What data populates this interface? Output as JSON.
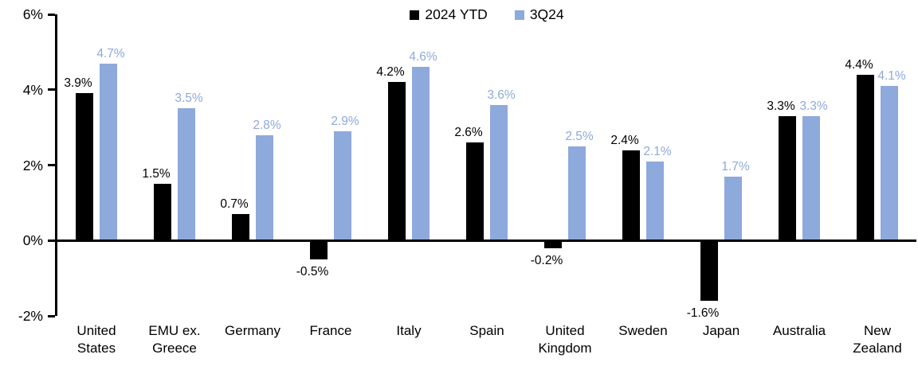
{
  "chart_data": {
    "type": "bar",
    "title": "",
    "xlabel": "",
    "ylabel": "",
    "grid": false,
    "legend_position": "top-center",
    "ylim": [
      -2,
      6
    ],
    "yticks": [
      {
        "value": 6,
        "label": "6%"
      },
      {
        "value": 4,
        "label": "4%"
      },
      {
        "value": 2,
        "label": "2%"
      },
      {
        "value": 0,
        "label": "0%"
      },
      {
        "value": -2,
        "label": "-2%"
      }
    ],
    "categories": [
      "United States",
      "EMU ex. Greece",
      "Germany",
      "France",
      "Italy",
      "Spain",
      "United Kingdom",
      "Sweden",
      "Japan",
      "Australia",
      "New Zealand"
    ],
    "series": [
      {
        "name": "2024 YTD",
        "color": "#000000",
        "values": [
          3.9,
          1.5,
          0.7,
          -0.5,
          4.2,
          2.6,
          -0.2,
          2.4,
          -1.6,
          3.3,
          4.4
        ],
        "labels": [
          "3.9%",
          "1.5%",
          "0.7%",
          "-0.5%",
          "4.2%",
          "2.6%",
          "-0.2%",
          "2.4%",
          "-1.6%",
          "3.3%",
          "4.4%"
        ]
      },
      {
        "name": "3Q24",
        "color": "#8EA9DB",
        "values": [
          4.7,
          3.5,
          2.8,
          2.9,
          4.6,
          3.6,
          2.5,
          2.1,
          1.7,
          3.3,
          4.1
        ],
        "labels": [
          "4.7%",
          "3.5%",
          "2.8%",
          "2.9%",
          "4.6%",
          "3.6%",
          "2.5%",
          "2.1%",
          "1.7%",
          "3.3%",
          "4.1%"
        ]
      }
    ]
  }
}
